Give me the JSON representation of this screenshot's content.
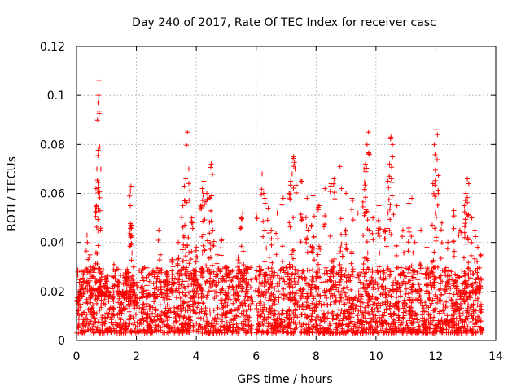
{
  "chart_data": {
    "type": "scatter",
    "title": "Day 240 of 2017, Rate Of TEC Index for receiver casc",
    "xlabel": "GPS time / hours",
    "ylabel": "ROTI / TECUs",
    "xlim": [
      0,
      14
    ],
    "ylim": [
      0,
      0.12
    ],
    "xticks": [
      0,
      2,
      4,
      6,
      8,
      10,
      12,
      14
    ],
    "xtick_labels": [
      "0",
      "2",
      "4",
      "6",
      "8",
      "10",
      "12",
      "14"
    ],
    "yticks": [
      0,
      0.02,
      0.04,
      0.06,
      0.08,
      0.1,
      0.12
    ],
    "ytick_labels": [
      "0",
      "0.02",
      "0.04",
      "0.06",
      "0.08",
      "0.1",
      "0.12"
    ],
    "grid": true,
    "marker": "+",
    "marker_color": "#ff0000",
    "series": [
      {
        "name": "ROTI",
        "x": [
          0.05,
          0.15,
          0.25,
          0.35,
          0.45,
          0.55,
          0.65,
          0.68,
          0.7,
          0.72,
          0.74,
          0.75,
          0.78,
          0.8,
          0.85,
          0.95,
          1.1,
          1.25,
          1.4,
          1.55,
          1.7,
          1.8,
          1.82,
          1.85,
          1.9,
          2.0,
          2.2,
          2.4,
          2.6,
          2.75,
          2.8,
          3.0,
          3.2,
          3.4,
          3.55,
          3.6,
          3.65,
          3.7,
          3.75,
          3.85,
          4.0,
          4.15,
          4.2,
          4.25,
          4.35,
          4.45,
          4.5,
          4.55,
          4.7,
          4.85,
          5.0,
          5.2,
          5.4,
          5.5,
          5.55,
          5.7,
          5.85,
          6.0,
          6.1,
          6.2,
          6.25,
          6.3,
          6.4,
          6.5,
          6.7,
          6.9,
          7.1,
          7.15,
          7.2,
          7.25,
          7.3,
          7.5,
          7.7,
          7.85,
          7.9,
          8.1,
          8.3,
          8.5,
          8.6,
          8.8,
          8.85,
          9.0,
          9.2,
          9.4,
          9.6,
          9.65,
          9.7,
          9.75,
          9.9,
          10.1,
          10.3,
          10.4,
          10.45,
          10.5,
          10.55,
          10.7,
          10.9,
          11.1,
          11.2,
          11.3,
          11.5,
          11.7,
          11.9,
          11.95,
          12.0,
          12.05,
          12.2,
          12.4,
          12.6,
          12.8,
          12.95,
          13.0,
          13.05,
          13.1,
          13.2,
          13.3,
          13.4,
          13.5
        ],
        "y": [
          0.015,
          0.022,
          0.028,
          0.043,
          0.035,
          0.03,
          0.062,
          0.07,
          0.09,
          0.097,
          0.1,
          0.106,
          0.079,
          0.045,
          0.02,
          0.026,
          0.018,
          0.031,
          0.024,
          0.02,
          0.028,
          0.061,
          0.063,
          0.047,
          0.03,
          0.015,
          0.022,
          0.019,
          0.026,
          0.045,
          0.035,
          0.028,
          0.033,
          0.04,
          0.055,
          0.063,
          0.066,
          0.085,
          0.07,
          0.05,
          0.038,
          0.055,
          0.062,
          0.065,
          0.06,
          0.058,
          0.072,
          0.045,
          0.035,
          0.041,
          0.03,
          0.025,
          0.034,
          0.05,
          0.052,
          0.03,
          0.015,
          0.052,
          0.03,
          0.068,
          0.06,
          0.056,
          0.054,
          0.045,
          0.052,
          0.058,
          0.06,
          0.065,
          0.068,
          0.075,
          0.07,
          0.065,
          0.058,
          0.047,
          0.059,
          0.055,
          0.062,
          0.064,
          0.066,
          0.071,
          0.062,
          0.06,
          0.058,
          0.052,
          0.07,
          0.072,
          0.08,
          0.085,
          0.05,
          0.055,
          0.045,
          0.065,
          0.072,
          0.083,
          0.08,
          0.055,
          0.045,
          0.056,
          0.058,
          0.04,
          0.045,
          0.038,
          0.064,
          0.08,
          0.086,
          0.084,
          0.048,
          0.04,
          0.053,
          0.045,
          0.055,
          0.06,
          0.066,
          0.064,
          0.05,
          0.045,
          0.038,
          0.035
        ]
      }
    ],
    "dense_band": {
      "description_values": "low-level ROTI values forming a continuous band",
      "x_start": 0.0,
      "x_end": 13.55,
      "gap_start": 5.85,
      "gap_end": 6.0,
      "y_floor": 0.003,
      "y_typical_max": 0.03
    }
  }
}
